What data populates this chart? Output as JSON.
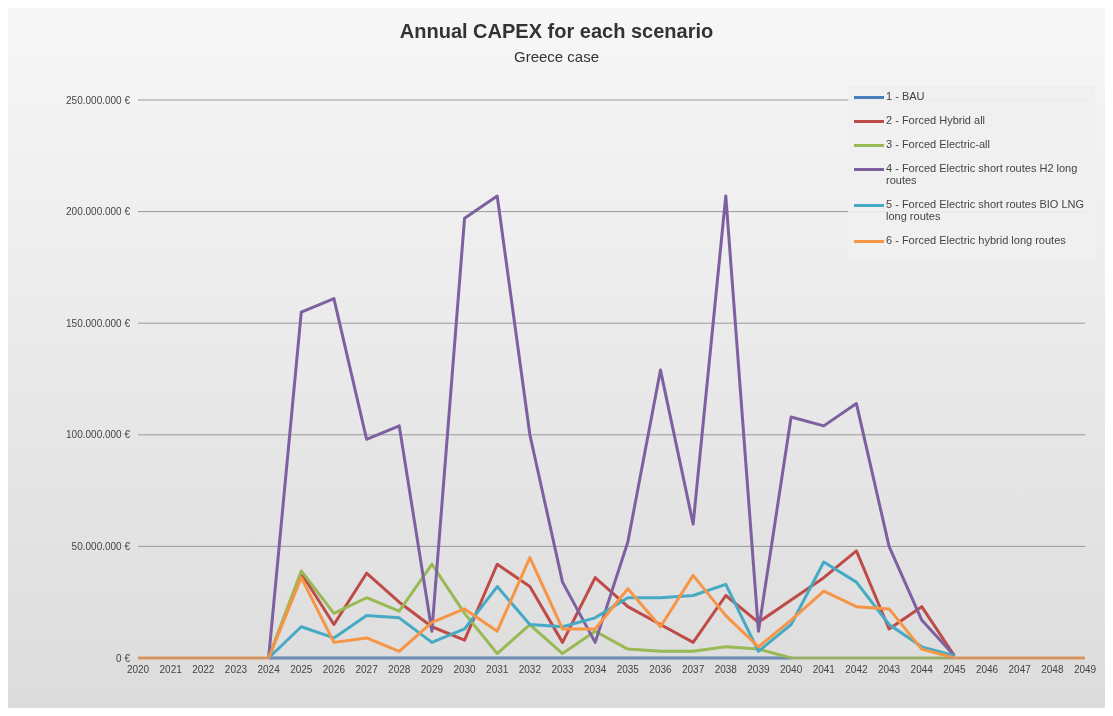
{
  "chart_data": {
    "type": "line",
    "title": "Annual CAPEX for each scenario",
    "subtitle": "Greece case",
    "categories": [
      "2020",
      "2021",
      "2022",
      "2023",
      "2024",
      "2025",
      "2026",
      "2027",
      "2028",
      "2029",
      "2030",
      "2031",
      "2032",
      "2033",
      "2034",
      "2035",
      "2036",
      "2037",
      "2038",
      "2039",
      "2040",
      "2041",
      "2042",
      "2043",
      "2044",
      "2045",
      "2046",
      "2047",
      "2048",
      "2049"
    ],
    "series": [
      {
        "name": "1 - BAU",
        "color": "#4a7ebb",
        "values": [
          null,
          null,
          null,
          null,
          0,
          0,
          0,
          0,
          0,
          0,
          0,
          0,
          0,
          0,
          0,
          0,
          0,
          0,
          0,
          0,
          0,
          null,
          null,
          null,
          null,
          null,
          null,
          null,
          null,
          null
        ]
      },
      {
        "name": "2 - Forced Hybrid all",
        "color": "#be4b48",
        "values": [
          null,
          null,
          null,
          null,
          0,
          38000000,
          15000000,
          38000000,
          25000000,
          14000000,
          8000000,
          42000000,
          32000000,
          7000000,
          36000000,
          23000000,
          15000000,
          7000000,
          28000000,
          16000000,
          26000000,
          36000000,
          48000000,
          13000000,
          23000000,
          1000000,
          null,
          null,
          null,
          null
        ]
      },
      {
        "name": "3 - Forced Electric-all",
        "color": "#98b954",
        "values": [
          null,
          null,
          null,
          null,
          0,
          39000000,
          20000000,
          27000000,
          21000000,
          42000000,
          20000000,
          2000000,
          15000000,
          2000000,
          12000000,
          4000000,
          3000000,
          3000000,
          5000000,
          4000000,
          0,
          0,
          0,
          0,
          0,
          0,
          null,
          null,
          null,
          null
        ]
      },
      {
        "name": "4 - Forced Electric short routes H2 long routes",
        "color": "#7d60a0",
        "values": [
          null,
          null,
          null,
          null,
          0,
          155000000,
          161000000,
          98000000,
          104000000,
          12000000,
          197000000,
          207000000,
          100000000,
          34000000,
          7000000,
          52000000,
          129000000,
          60000000,
          207000000,
          12000000,
          108000000,
          104000000,
          114000000,
          50000000,
          17000000,
          1000000,
          null,
          null,
          null,
          null
        ]
      },
      {
        "name": "5 - Forced Electric short routes BIO LNG long routes",
        "color": "#46aac5",
        "values": [
          null,
          null,
          null,
          null,
          0,
          14000000,
          9000000,
          19000000,
          18000000,
          7000000,
          13000000,
          32000000,
          15000000,
          14000000,
          18000000,
          27000000,
          27000000,
          28000000,
          33000000,
          3000000,
          15000000,
          43000000,
          34000000,
          15000000,
          5000000,
          1000000,
          null,
          null,
          null,
          null
        ]
      },
      {
        "name": "6 - Forced Electric hybrid long routes",
        "color": "#f69545",
        "values": [
          0,
          0,
          0,
          0,
          0,
          36000000,
          7000000,
          9000000,
          3000000,
          16000000,
          22000000,
          12000000,
          45000000,
          13000000,
          13000000,
          31000000,
          14000000,
          37000000,
          19000000,
          5000000,
          17000000,
          30000000,
          23000000,
          22000000,
          4000000,
          0,
          0,
          0,
          0,
          0
        ]
      }
    ],
    "ylim": [
      0,
      250000000
    ],
    "yticks": [
      {
        "value": 0,
        "label": "0 €"
      },
      {
        "value": 50000000,
        "label": "50.000.000 €"
      },
      {
        "value": 100000000,
        "label": "100.000.000 €"
      },
      {
        "value": 150000000,
        "label": "150.000.000 €"
      },
      {
        "value": 200000000,
        "label": "200.000.000 €"
      },
      {
        "value": 250000000,
        "label": "250.000.000 €"
      }
    ],
    "grid": "y",
    "legend": "top right",
    "marker": "none",
    "line_style": "solid"
  }
}
